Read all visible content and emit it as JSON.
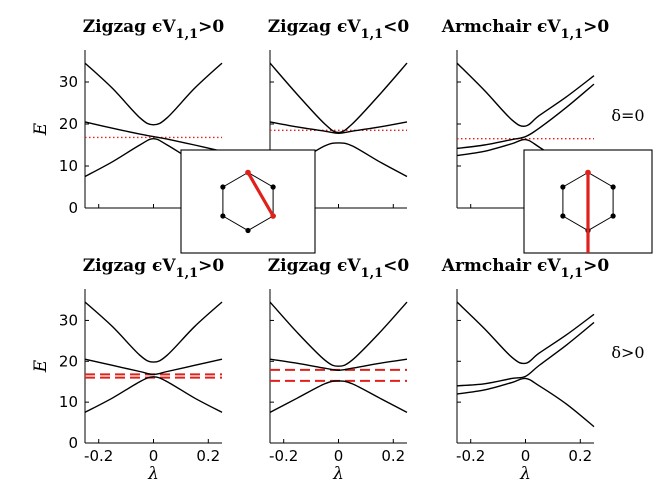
{
  "chart_data": [
    {
      "type": "line",
      "row": "top",
      "col": 0,
      "title": "Zigzag ϵV₁,₁>0",
      "title_main": "Zigzag ",
      "title_sym": "ϵ",
      "title_v": "V",
      "title_sub": "1,1",
      "title_rel": ">0",
      "xlim": [
        -0.25,
        0.25
      ],
      "ylim": [
        0,
        35
      ],
      "yticks": [
        "0",
        "10",
        "20",
        "30"
      ],
      "xticks": [],
      "ylabel": "E",
      "xlabel": "",
      "series": [
        {
          "x": [
            -0.25,
            -0.15,
            -0.05,
            0,
            0.05,
            0.15,
            0.25
          ],
          "y": [
            34.5,
            28.5,
            21.5,
            19.8,
            21.5,
            28.5,
            34.5
          ]
        },
        {
          "x": [
            -0.25,
            -0.15,
            -0.05,
            0,
            0.05,
            0.15,
            0.25
          ],
          "y": [
            20.5,
            19.0,
            17.6,
            17.0,
            16.4,
            15.0,
            13.5
          ]
        },
        {
          "x": [
            -0.25,
            -0.15,
            -0.05,
            0,
            0.05,
            0.15,
            0.25
          ],
          "y": [
            7.5,
            11.0,
            15.0,
            16.5,
            15.0,
            11.0,
            7.5
          ]
        }
      ],
      "hlines": [
        {
          "y": 16.8,
          "style": "dotted"
        }
      ]
    },
    {
      "type": "line",
      "row": "top",
      "col": 1,
      "title": "Zigzag ϵV₁,₁<0",
      "title_main": "Zigzag ",
      "title_sym": "ϵ",
      "title_v": "V",
      "title_sub": "1,1",
      "title_rel": "<0",
      "xlim": [
        -0.25,
        0.25
      ],
      "ylim": [
        0,
        35
      ],
      "yticks": [],
      "xticks": [],
      "ylabel": "",
      "xlabel": "",
      "series": [
        {
          "x": [
            -0.25,
            -0.15,
            -0.05,
            0,
            0.05,
            0.15,
            0.25
          ],
          "y": [
            34.5,
            27.0,
            20.0,
            18.0,
            20.0,
            27.0,
            34.5
          ]
        },
        {
          "x": [
            -0.25,
            -0.15,
            -0.05,
            0,
            0.05,
            0.15,
            0.25
          ],
          "y": [
            20.5,
            19.3,
            18.3,
            17.8,
            18.3,
            19.3,
            20.5
          ]
        },
        {
          "x": [
            -0.25,
            -0.15,
            -0.05,
            0,
            0.05,
            0.15,
            0.25
          ],
          "y": [
            7.5,
            11.0,
            14.8,
            15.5,
            14.8,
            11.0,
            7.5
          ]
        }
      ],
      "hlines": [
        {
          "y": 18.5,
          "style": "dotted"
        }
      ]
    },
    {
      "type": "line",
      "row": "top",
      "col": 2,
      "title": "Armchair ϵV₁,₁>0",
      "title_main": "Armchair ",
      "title_sym": "ϵ",
      "title_v": "V",
      "title_sub": "1,1",
      "title_rel": ">0",
      "xlim": [
        -0.25,
        0.25
      ],
      "ylim": [
        0,
        35
      ],
      "yticks": [],
      "xticks": [],
      "ylabel": "",
      "xlabel": "",
      "annotation": "δ=0",
      "series": [
        {
          "x": [
            -0.25,
            -0.15,
            -0.05,
            0,
            0.05,
            0.15,
            0.25
          ],
          "y": [
            34.5,
            28.0,
            21.0,
            19.5,
            22.0,
            26.5,
            31.5
          ]
        },
        {
          "x": [
            -0.25,
            -0.15,
            -0.05,
            0,
            0.05,
            0.15,
            0.25
          ],
          "y": [
            14.2,
            15.0,
            16.3,
            17.0,
            19.0,
            24.0,
            29.5
          ]
        },
        {
          "x": [
            -0.25,
            -0.15,
            -0.05,
            0,
            0.05,
            0.15,
            0.25
          ],
          "y": [
            12.5,
            13.5,
            15.3,
            16.3,
            14.5,
            10.0,
            4.5
          ]
        }
      ],
      "hlines": [
        {
          "y": 16.5,
          "style": "dotted"
        }
      ]
    },
    {
      "type": "line",
      "row": "bottom",
      "col": 0,
      "title": "Zigzag ϵV₁,₁>0",
      "title_main": "Zigzag ",
      "title_sym": "ϵ",
      "title_v": "V",
      "title_sub": "1,1",
      "title_rel": ">0",
      "xlim": [
        -0.25,
        0.25
      ],
      "ylim": [
        0,
        35
      ],
      "yticks": [
        "0",
        "10",
        "20",
        "30"
      ],
      "xticks": [
        "-0.2",
        "0",
        "0.2"
      ],
      "ylabel": "E",
      "xlabel": "λ",
      "series": [
        {
          "x": [
            -0.25,
            -0.15,
            -0.05,
            0,
            0.05,
            0.15,
            0.25
          ],
          "y": [
            34.5,
            28.5,
            21.5,
            19.8,
            21.5,
            28.5,
            34.5
          ]
        },
        {
          "x": [
            -0.25,
            -0.15,
            -0.05,
            0,
            0.05,
            0.15,
            0.25
          ],
          "y": [
            20.5,
            19.0,
            17.5,
            16.8,
            17.5,
            19.0,
            20.5
          ]
        },
        {
          "x": [
            -0.25,
            -0.15,
            -0.05,
            0,
            0.05,
            0.15,
            0.25
          ],
          "y": [
            7.5,
            11.0,
            15.0,
            16.2,
            15.0,
            11.0,
            7.5
          ]
        }
      ],
      "hlines": [
        {
          "y": 16.8,
          "style": "dashed"
        },
        {
          "y": 16.0,
          "style": "dashed"
        }
      ]
    },
    {
      "type": "line",
      "row": "bottom",
      "col": 1,
      "title": "Zigzag ϵV₁,₁<0",
      "title_main": "Zigzag ",
      "title_sym": "ϵ",
      "title_v": "V",
      "title_sub": "1,1",
      "title_rel": "<0",
      "xlim": [
        -0.25,
        0.25
      ],
      "ylim": [
        0,
        35
      ],
      "yticks": [],
      "xticks": [
        "-0.2",
        "0",
        "0.2"
      ],
      "ylabel": "",
      "xlabel": "λ",
      "series": [
        {
          "x": [
            -0.25,
            -0.15,
            -0.05,
            0,
            0.05,
            0.15,
            0.25
          ],
          "y": [
            34.5,
            27.0,
            20.3,
            18.8,
            20.3,
            27.0,
            34.5
          ]
        },
        {
          "x": [
            -0.25,
            -0.15,
            -0.05,
            0,
            0.05,
            0.15,
            0.25
          ],
          "y": [
            20.5,
            19.5,
            18.3,
            17.8,
            18.3,
            19.5,
            20.5
          ]
        },
        {
          "x": [
            -0.25,
            -0.15,
            -0.05,
            0,
            0.05,
            0.15,
            0.25
          ],
          "y": [
            7.5,
            11.0,
            14.5,
            15.2,
            14.5,
            11.0,
            7.5
          ]
        }
      ],
      "hlines": [
        {
          "y": 17.9,
          "style": "dashed"
        },
        {
          "y": 15.2,
          "style": "dashed"
        }
      ]
    },
    {
      "type": "line",
      "row": "bottom",
      "col": 2,
      "title": "Armchair ϵV₁,₁>0",
      "title_main": "Armchair ",
      "title_sym": "ϵ",
      "title_v": "V",
      "title_sub": "1,1",
      "title_rel": ">0",
      "xlim": [
        -0.25,
        0.25
      ],
      "ylim": [
        0,
        35
      ],
      "yticks": [],
      "xticks": [
        "-0.2",
        "0",
        "0.2"
      ],
      "ylabel": "",
      "xlabel": "λ",
      "annotation": "δ>0",
      "series": [
        {
          "x": [
            -0.25,
            -0.15,
            -0.05,
            0,
            0.05,
            0.15,
            0.25
          ],
          "y": [
            34.5,
            28.0,
            21.0,
            19.5,
            22.0,
            26.5,
            31.5
          ]
        },
        {
          "x": [
            -0.25,
            -0.15,
            -0.05,
            0,
            0.05,
            0.15,
            0.25
          ],
          "y": [
            14.0,
            14.5,
            15.8,
            16.3,
            19.0,
            24.0,
            29.5
          ]
        },
        {
          "x": [
            -0.25,
            -0.15,
            -0.05,
            0,
            0.05,
            0.15,
            0.25
          ],
          "y": [
            12.0,
            13.0,
            14.8,
            15.8,
            14.0,
            9.5,
            4.0
          ]
        }
      ],
      "hlines": []
    }
  ],
  "insets": [
    {
      "bond": "zigzag"
    },
    {
      "bond": "armchair"
    }
  ],
  "colors": {
    "curve": "#000000",
    "ref": "#e0201b",
    "inset_bond": "#e0201b"
  }
}
